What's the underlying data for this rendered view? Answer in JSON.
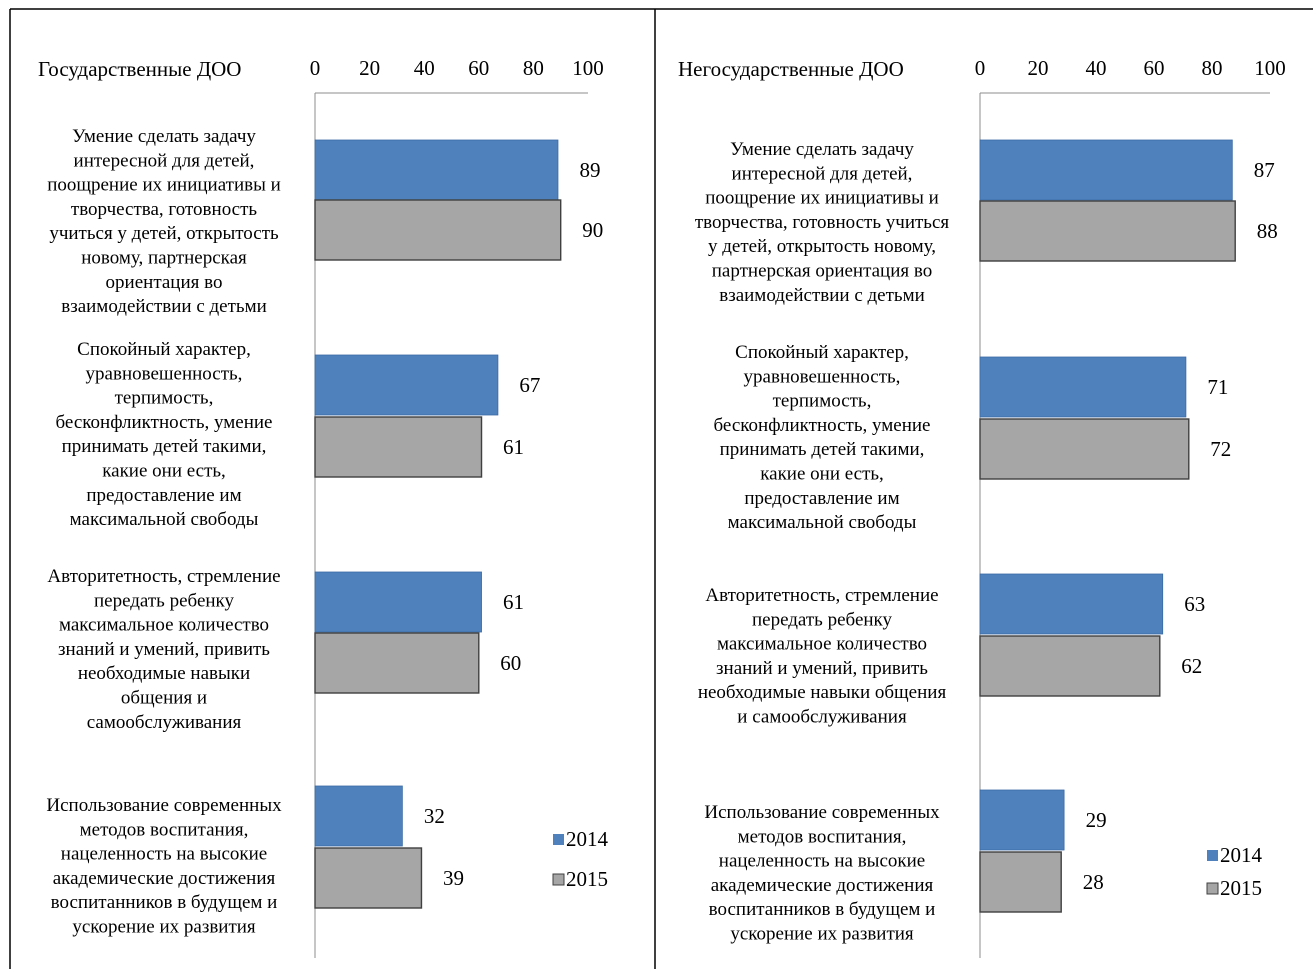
{
  "chart_data": [
    {
      "type": "bar",
      "orientation": "horizontal",
      "title": "Государственные ДОО",
      "xlim": [
        0,
        100
      ],
      "xticks": [
        "0",
        "20",
        "40",
        "60",
        "80",
        "100"
      ],
      "categories": [
        "Умение сделать задачу интересной для детей, поощрение их инициативы и творчества, готовность учиться у детей, открытость новому, партнерская ориентация во взаимодействии с детьми",
        "Спокойный характер, уравновешенность, терпимость, бесконфликтность, умение принимать детей такими, какие они есть, предоставление им максимальной свободы",
        "Авторитетность, стремление передать ребенку максимальное количество знаний и умений, привить необходимые навыки общения и самообслуживания",
        "Использование современных методов воспитания, нацеленность на высокие академические достижения воспитанников в будущем и ускорение их развития"
      ],
      "category_lines": [
        [
          "Умение сделать задачу",
          "интересной для детей,",
          "поощрение их инициативы и",
          "творчества, готовность",
          "учиться у детей, открытость",
          "новому, партнерская",
          "ориентация во",
          "взаимодействии с детьми"
        ],
        [
          "Спокойный характер,",
          "уравновешенность,",
          "терпимость,",
          "бесконфликтность, умение",
          "принимать детей такими,",
          "какие они есть,",
          "предоставление им",
          "максимальной свободы"
        ],
        [
          "Авторитетность, стремление",
          "передать ребенку",
          "максимальное количество",
          "знаний и умений, привить",
          "необходимые навыки",
          "общения и",
          "самообслуживания"
        ],
        [
          "Использование современных",
          "методов воспитания,",
          "нацеленность на высокие",
          "академические достижения",
          "воспитанников в будущем и",
          "ускорение их развития"
        ]
      ],
      "series": [
        {
          "name": "2014",
          "color": "#4F81BD",
          "values": [
            89,
            67,
            61,
            32
          ]
        },
        {
          "name": "2015",
          "color": "#A6A6A6",
          "values": [
            90,
            61,
            60,
            39
          ]
        }
      ],
      "legend_position": "bottom-right",
      "grid": false
    },
    {
      "type": "bar",
      "orientation": "horizontal",
      "title": "Негосударственные ДОО",
      "xlim": [
        0,
        100
      ],
      "xticks": [
        "0",
        "20",
        "40",
        "60",
        "80",
        "100"
      ],
      "categories": [
        "Умение сделать задачу интересной для детей, поощрение их инициативы и творчества, готовность учиться у детей, открытость новому, партнерская ориентация во взаимодействии с детьми",
        "Спокойный характер, уравновешенность, терпимость, бесконфликтность, умение принимать детей такими, какие они есть, предоставление им максимальной свободы",
        "Авторитетность, стремление передать ребенку максимальное количество знаний и умений, привить необходимые навыки общения и самообслуживания",
        "Использование современных методов воспитания, нацеленность на высокие академические достижения воспитанников в будущем и ускорение их развития"
      ],
      "category_lines": [
        [
          "Умение сделать задачу",
          "интересной для детей,",
          "поощрение их инициативы и",
          "творчества, готовность учиться",
          "у детей, открытость новому,",
          "партнерская ориентация во",
          "взаимодействии с детьми"
        ],
        [
          "Спокойный характер,",
          "уравновешенность,",
          "терпимость,",
          "бесконфликтность, умение",
          "принимать детей такими,",
          "какие они есть,",
          "предоставление им",
          "максимальной свободы"
        ],
        [
          "Авторитетность, стремление",
          "передать ребенку",
          "максимальное количество",
          "знаний и умений, привить",
          "необходимые навыки общения",
          "и самообслуживания"
        ],
        [
          "Использование современных",
          "методов воспитания,",
          "нацеленность на высокие",
          "академические достижения",
          "воспитанников в будущем и",
          "ускорение их развития"
        ]
      ],
      "series": [
        {
          "name": "2014",
          "color": "#4F81BD",
          "values": [
            87,
            71,
            63,
            29
          ]
        },
        {
          "name": "2015",
          "color": "#A6A6A6",
          "values": [
            88,
            72,
            62,
            28
          ]
        }
      ],
      "legend_position": "bottom-right",
      "grid": false
    }
  ]
}
